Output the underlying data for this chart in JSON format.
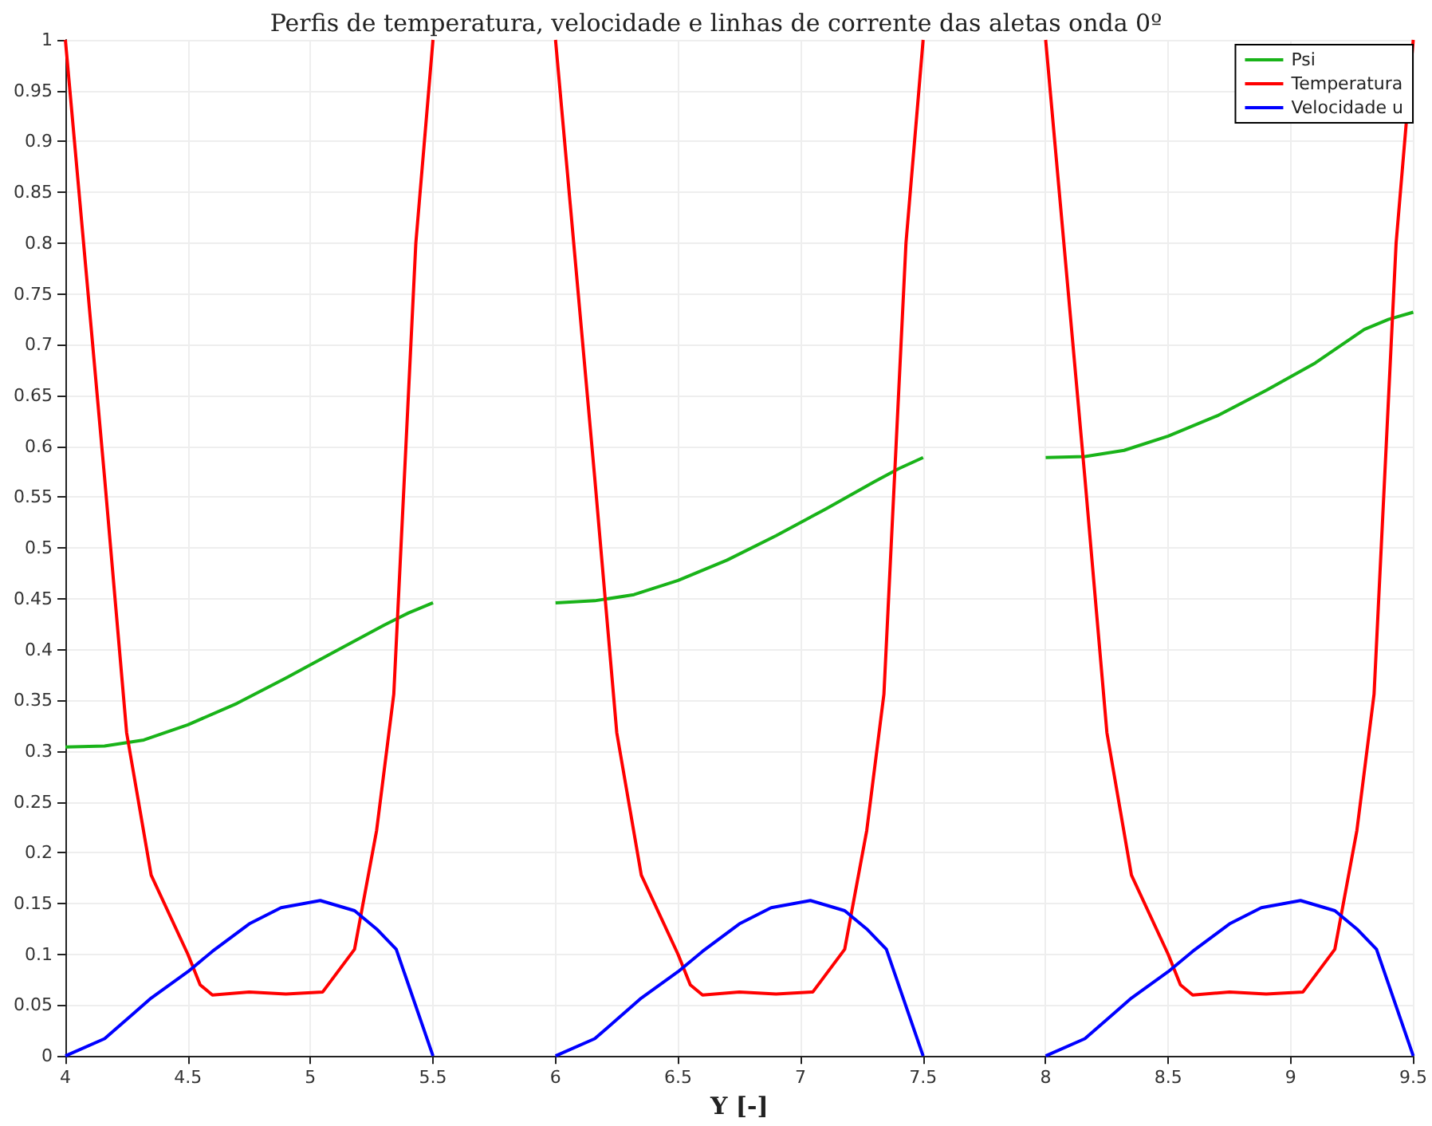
{
  "chart_data": {
    "type": "line",
    "title": "Perfis de temperatura, velocidade e linhas de corrente das aletas onda 0º",
    "xlabel": "Y [-]",
    "xlim": [
      4,
      9.5
    ],
    "xticks": [
      4,
      4.5,
      5,
      5.5,
      6,
      6.5,
      7,
      7.5,
      8,
      8.5,
      9,
      9.5
    ],
    "ylim": [
      0,
      1
    ],
    "yticks": [
      0,
      0.05,
      0.1,
      0.15,
      0.2,
      0.25,
      0.3,
      0.35,
      0.4,
      0.45,
      0.5,
      0.55,
      0.6,
      0.65,
      0.7,
      0.75,
      0.8,
      0.85,
      0.9,
      0.95,
      1
    ],
    "grid": true,
    "legend": "top right",
    "marker": "none",
    "line_style": "solid",
    "series": [
      {
        "name": "Psi",
        "color": "#19b319",
        "x": [
          4,
          4.16,
          4.32,
          4.5,
          4.7,
          4.9,
          5.1,
          5.3,
          5.4,
          5.5,
          null,
          6,
          6.16,
          6.32,
          6.5,
          6.7,
          6.9,
          7.1,
          7.3,
          7.4,
          7.5,
          null,
          8,
          8.16,
          8.32,
          8.5,
          8.7,
          8.9,
          9.1,
          9.3,
          9.4,
          9.5
        ],
        "values": [
          0.304,
          0.305,
          0.311,
          0.326,
          0.347,
          0.372,
          0.398,
          0.424,
          0.436,
          0.446,
          null,
          0.446,
          0.448,
          0.454,
          0.468,
          0.488,
          0.512,
          0.538,
          0.565,
          0.578,
          0.589,
          null,
          0.589,
          0.59,
          0.596,
          0.61,
          0.63,
          0.655,
          0.682,
          0.715,
          0.725,
          0.732
        ]
      },
      {
        "name": "Temperatura",
        "color": "#ff0000",
        "x": [
          4,
          4.16,
          4.25,
          4.35,
          4.5,
          4.55,
          4.6,
          4.75,
          4.9,
          5.05,
          5.18,
          5.27,
          5.34,
          5.43,
          5.5,
          null,
          6,
          6.16,
          6.25,
          6.35,
          6.5,
          6.55,
          6.6,
          6.75,
          6.9,
          7.05,
          7.18,
          7.27,
          7.34,
          7.43,
          7.5,
          null,
          8,
          8.16,
          8.25,
          8.35,
          8.5,
          8.55,
          8.6,
          8.75,
          8.9,
          9.05,
          9.18,
          9.27,
          9.34,
          9.43,
          9.5
        ],
        "values": [
          1,
          0.569,
          0.318,
          0.178,
          0.1,
          0.07,
          0.06,
          0.063,
          0.061,
          0.063,
          0.105,
          0.222,
          0.356,
          0.8,
          1,
          null,
          1,
          0.569,
          0.318,
          0.178,
          0.1,
          0.07,
          0.06,
          0.063,
          0.061,
          0.063,
          0.105,
          0.222,
          0.356,
          0.8,
          1,
          null,
          1,
          0.569,
          0.318,
          0.178,
          0.1,
          0.07,
          0.06,
          0.063,
          0.061,
          0.063,
          0.105,
          0.222,
          0.356,
          0.8,
          1
        ]
      },
      {
        "name": "Velocidade u",
        "color": "#0000ff",
        "x": [
          4,
          4.16,
          4.26,
          4.35,
          4.5,
          4.6,
          4.75,
          4.88,
          5.04,
          5.18,
          5.27,
          5.35,
          5.5,
          null,
          6,
          6.16,
          6.26,
          6.35,
          6.5,
          6.6,
          6.75,
          6.88,
          7.04,
          7.18,
          7.27,
          7.35,
          7.5,
          null,
          8,
          8.16,
          8.26,
          8.35,
          8.5,
          8.6,
          8.75,
          8.88,
          9.04,
          9.18,
          9.27,
          9.35,
          9.5
        ],
        "values": [
          0,
          0.017,
          0.038,
          0.057,
          0.083,
          0.103,
          0.13,
          0.146,
          0.153,
          0.143,
          0.125,
          0.105,
          0,
          null,
          0,
          0.017,
          0.038,
          0.057,
          0.083,
          0.103,
          0.13,
          0.146,
          0.153,
          0.143,
          0.125,
          0.105,
          0,
          null,
          0,
          0.017,
          0.038,
          0.057,
          0.083,
          0.103,
          0.13,
          0.146,
          0.153,
          0.143,
          0.125,
          0.105,
          0
        ]
      }
    ]
  }
}
